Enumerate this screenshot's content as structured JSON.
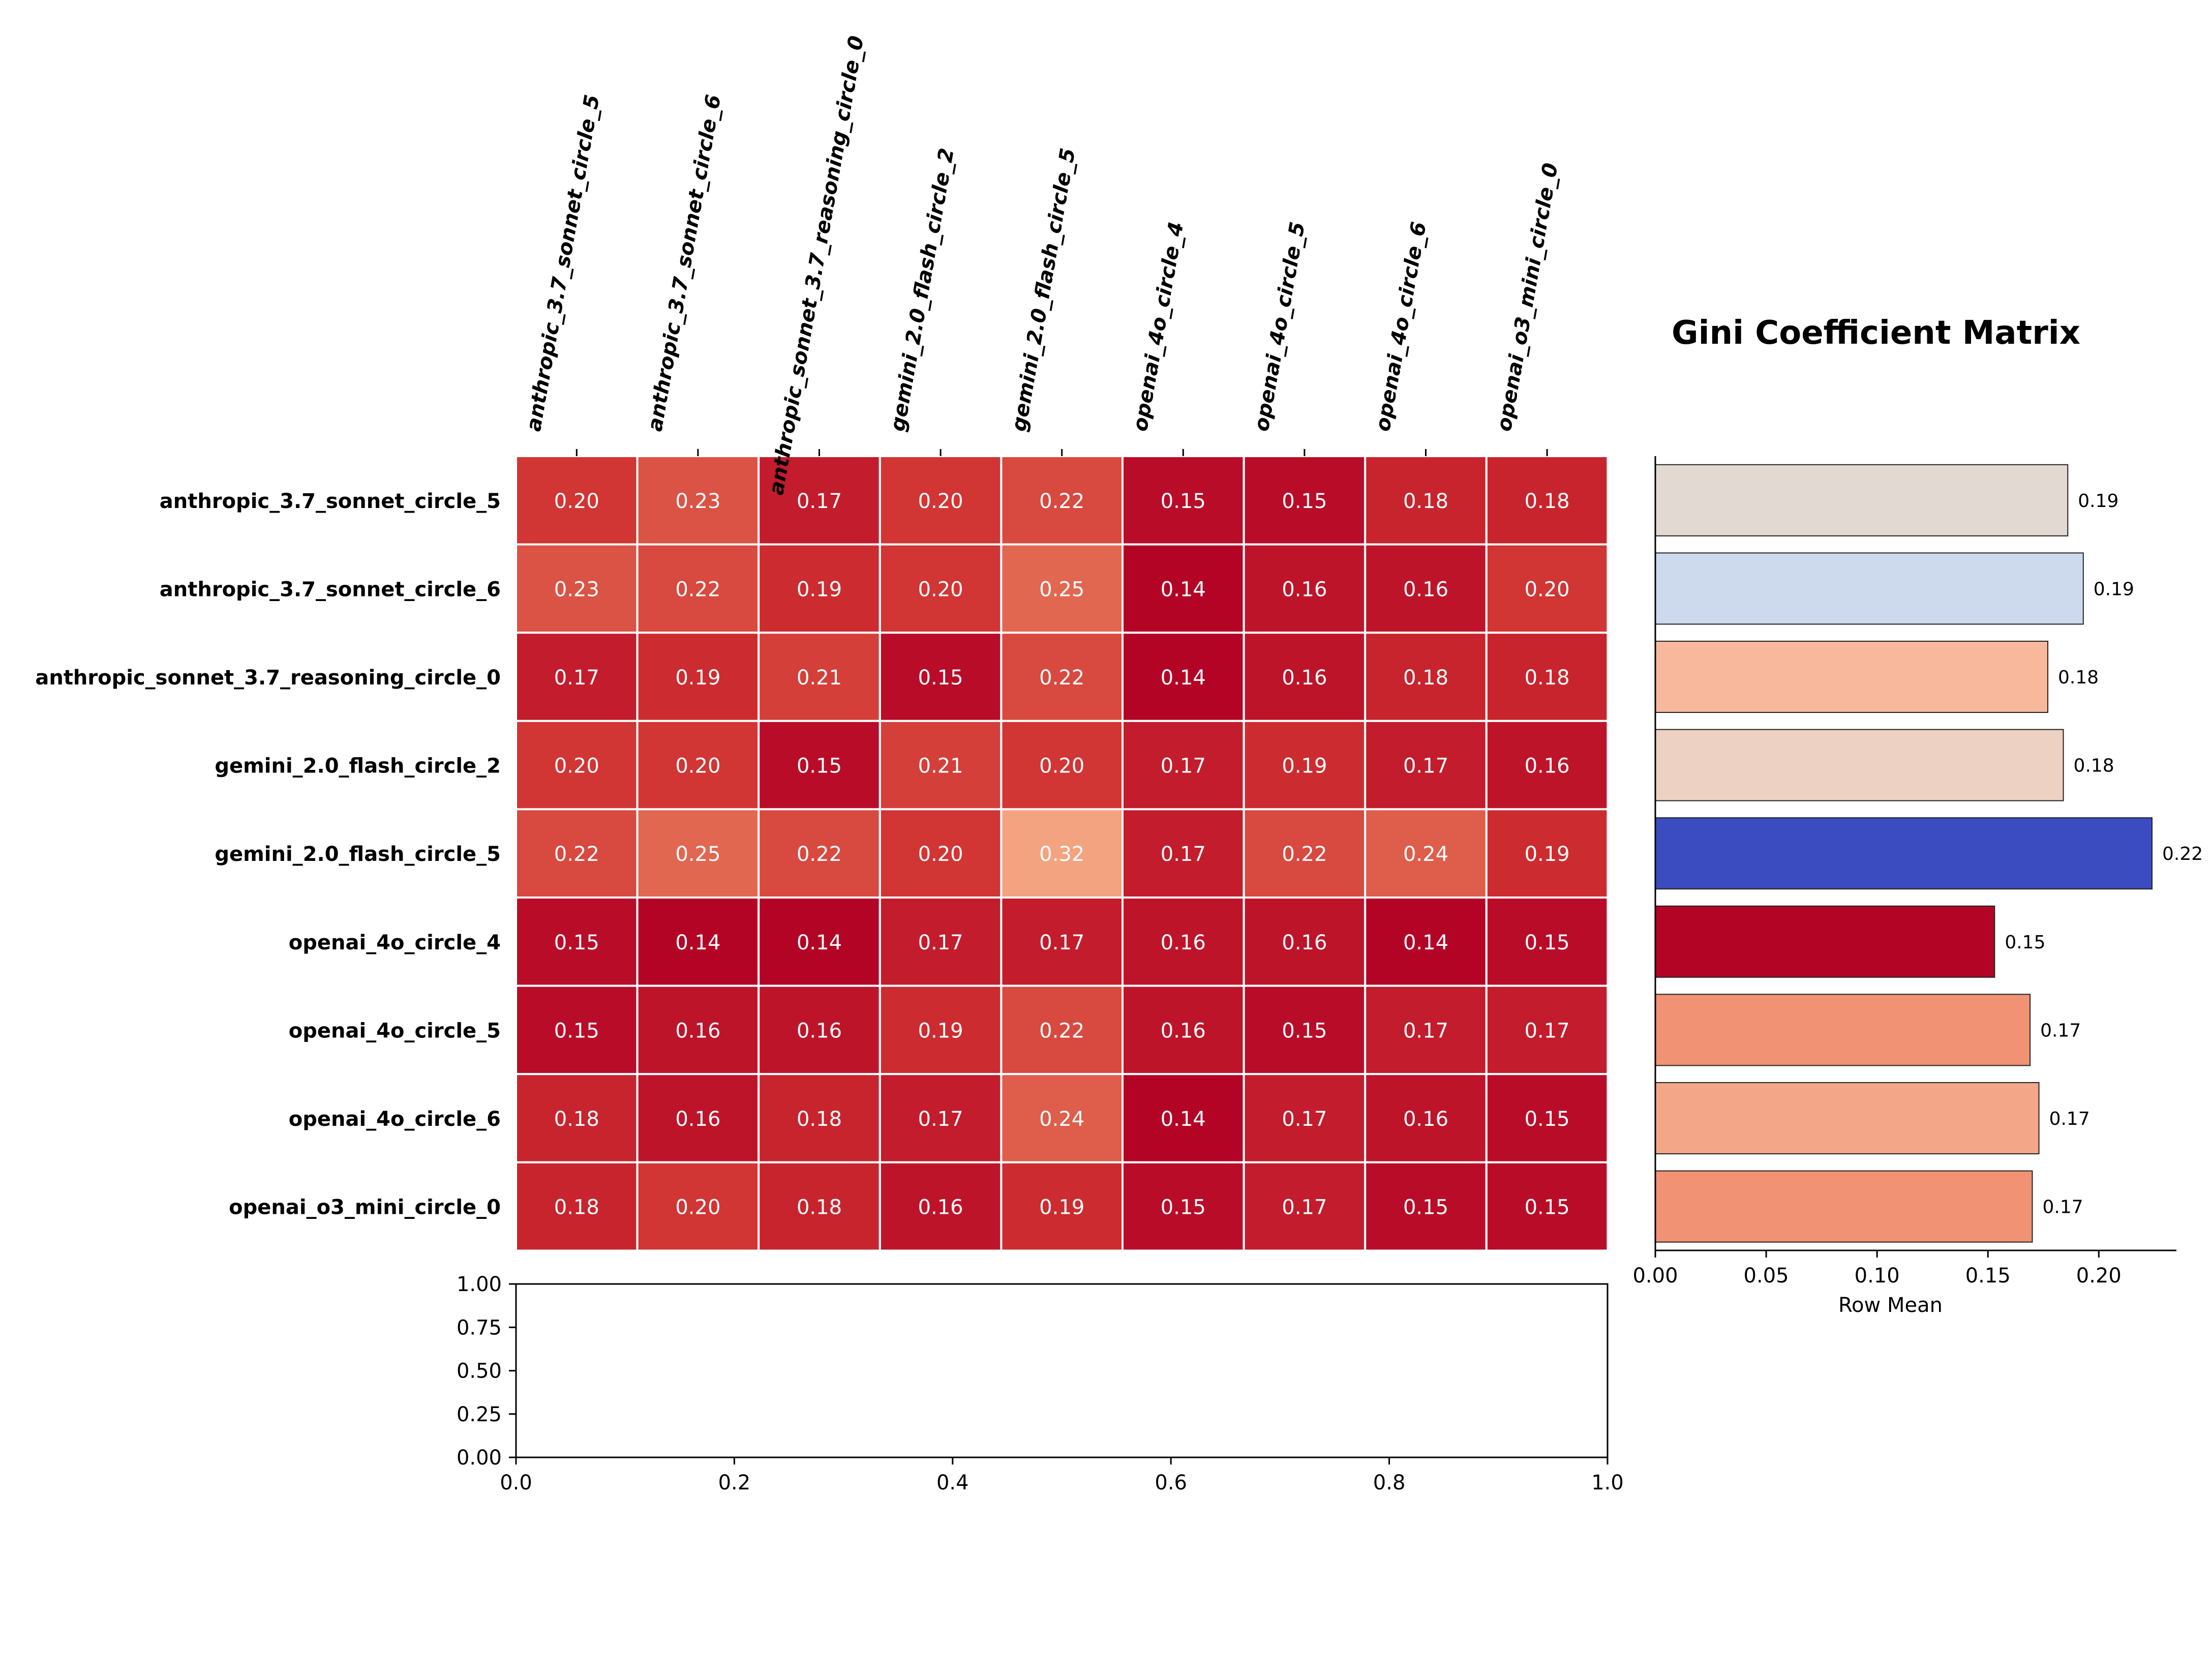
{
  "chart_data": [
    {
      "type": "heatmap",
      "title": "Gini Coefficient Matrix",
      "rows": [
        "anthropic_3.7_sonnet_circle_5",
        "anthropic_3.7_sonnet_circle_6",
        "anthropic_sonnet_3.7_reasoning_circle_0",
        "gemini_2.0_flash_circle_2",
        "gemini_2.0_flash_circle_5",
        "openai_4o_circle_4",
        "openai_4o_circle_5",
        "openai_4o_circle_6",
        "openai_o3_mini_circle_0"
      ],
      "columns": [
        "anthropic_3.7_sonnet_circle_5",
        "anthropic_3.7_sonnet_circle_6",
        "anthropic_sonnet_3.7_reasoning_circle_0",
        "gemini_2.0_flash_circle_2",
        "gemini_2.0_flash_circle_5",
        "openai_4o_circle_4",
        "openai_4o_circle_5",
        "openai_4o_circle_6",
        "openai_o3_mini_circle_0"
      ],
      "values": [
        [
          0.2,
          0.23,
          0.17,
          0.2,
          0.22,
          0.15,
          0.15,
          0.18,
          0.18
        ],
        [
          0.23,
          0.22,
          0.19,
          0.2,
          0.25,
          0.14,
          0.16,
          0.16,
          0.2
        ],
        [
          0.17,
          0.19,
          0.21,
          0.15,
          0.22,
          0.14,
          0.16,
          0.18,
          0.18
        ],
        [
          0.2,
          0.2,
          0.15,
          0.21,
          0.2,
          0.17,
          0.19,
          0.17,
          0.16
        ],
        [
          0.22,
          0.25,
          0.22,
          0.2,
          0.32,
          0.17,
          0.22,
          0.24,
          0.19
        ],
        [
          0.15,
          0.14,
          0.14,
          0.17,
          0.17,
          0.16,
          0.16,
          0.14,
          0.15
        ],
        [
          0.15,
          0.16,
          0.16,
          0.19,
          0.22,
          0.16,
          0.15,
          0.17,
          0.17
        ],
        [
          0.18,
          0.16,
          0.18,
          0.17,
          0.24,
          0.14,
          0.17,
          0.16,
          0.15
        ],
        [
          0.18,
          0.2,
          0.18,
          0.16,
          0.19,
          0.15,
          0.17,
          0.15,
          0.15
        ]
      ],
      "colormap": "Reds",
      "grid": true
    },
    {
      "type": "bar",
      "orientation": "horizontal",
      "categories": [
        "anthropic_3.7_sonnet_circle_5",
        "anthropic_3.7_sonnet_circle_6",
        "anthropic_sonnet_3.7_reasoning_circle_0",
        "gemini_2.0_flash_circle_2",
        "gemini_2.0_flash_circle_5",
        "openai_4o_circle_4",
        "openai_4o_circle_5",
        "openai_4o_circle_6",
        "openai_o3_mini_circle_0"
      ],
      "values": [
        0.186,
        0.193,
        0.177,
        0.184,
        0.224,
        0.153,
        0.169,
        0.173,
        0.17
      ],
      "value_labels": [
        "0.19",
        "0.19",
        "0.18",
        "0.18",
        "0.22",
        "0.15",
        "0.17",
        "0.17",
        "0.17"
      ],
      "bar_colors": [
        "#e3d9d3",
        "#cdd9ec",
        "#f7b89c",
        "#edd1c2",
        "#3b4cc0",
        "#b40426",
        "#f29274",
        "#f4a688",
        "#f29274"
      ],
      "xlabel": "Row Mean",
      "xlim": [
        0,
        0.235
      ],
      "xticks": [
        "0.00",
        "0.05",
        "0.10",
        "0.15",
        "0.20"
      ],
      "xtick_values": [
        0,
        0.05,
        0.1,
        0.15,
        0.2
      ]
    },
    {
      "type": "line",
      "xlim": [
        0,
        1
      ],
      "ylim": [
        0,
        1
      ],
      "xticks": [
        "0.0",
        "0.2",
        "0.4",
        "0.6",
        "0.8",
        "1.0"
      ],
      "xtick_values": [
        0,
        0.2,
        0.4,
        0.6,
        0.8,
        1.0
      ],
      "yticks": [
        "0.00",
        "0.25",
        "0.50",
        "0.75",
        "1.00"
      ],
      "ytick_values": [
        0,
        0.25,
        0.5,
        0.75,
        1.0
      ],
      "series": []
    }
  ]
}
